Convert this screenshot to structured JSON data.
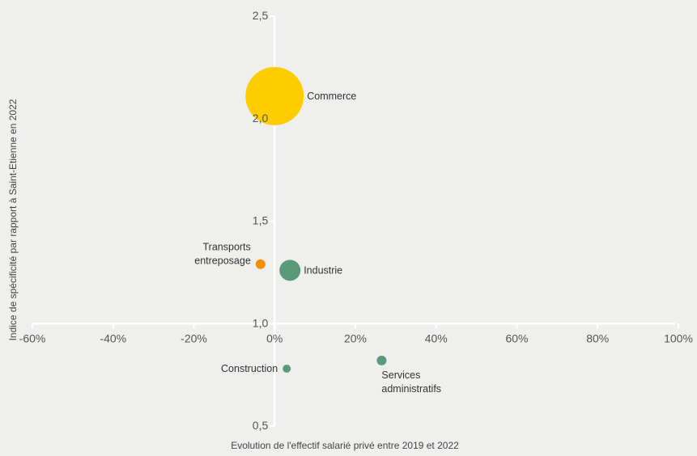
{
  "chart_data": {
    "type": "scatter",
    "subtype": "bubble",
    "xlabel": "Evolution de l'effectif salarié privé entre 2019 et 2022",
    "ylabel": "Indice de spécificité par rapport à Saint-Etienne en 2022",
    "xlim": [
      -60,
      100
    ],
    "ylim": [
      0.5,
      2.5
    ],
    "x_ticks": [
      -60,
      -40,
      -20,
      0,
      20,
      40,
      60,
      80,
      100
    ],
    "x_tick_labels": [
      "-60%",
      "-40%",
      "-20%",
      "0%",
      "20%",
      "40%",
      "60%",
      "80%",
      "100%"
    ],
    "y_ticks": [
      0.5,
      1.0,
      1.5,
      2.0,
      2.5
    ],
    "y_tick_labels": [
      "0,5",
      "1,0",
      "1,5",
      "2,0",
      "2,5"
    ],
    "x_axis_crosses_y": 1.0,
    "grid": false,
    "legend": "none",
    "colors": {
      "yellow": "#ffcc00",
      "orange": "#f39200",
      "green": "#5a9a7a",
      "axis": "#ffffff"
    },
    "points": [
      {
        "label": [
          "Commerce"
        ],
        "x": 0,
        "y": 2.11,
        "size": 36,
        "color": "#ffcc00",
        "label_side": "right"
      },
      {
        "label": [
          "Transports",
          "entreposage"
        ],
        "x": -3.5,
        "y": 1.29,
        "size": 6,
        "color": "#f39200",
        "label_side": "left"
      },
      {
        "label": [
          "Industrie"
        ],
        "x": 3.8,
        "y": 1.26,
        "size": 13,
        "color": "#5a9a7a",
        "label_side": "right"
      },
      {
        "label": [
          "Construction"
        ],
        "x": 3,
        "y": 0.78,
        "size": 5,
        "color": "#5a9a7a",
        "label_side": "left"
      },
      {
        "label": [
          "Services",
          "administratifs"
        ],
        "x": 26.5,
        "y": 0.82,
        "size": 6,
        "color": "#5a9a7a",
        "label_side": "below"
      }
    ]
  }
}
